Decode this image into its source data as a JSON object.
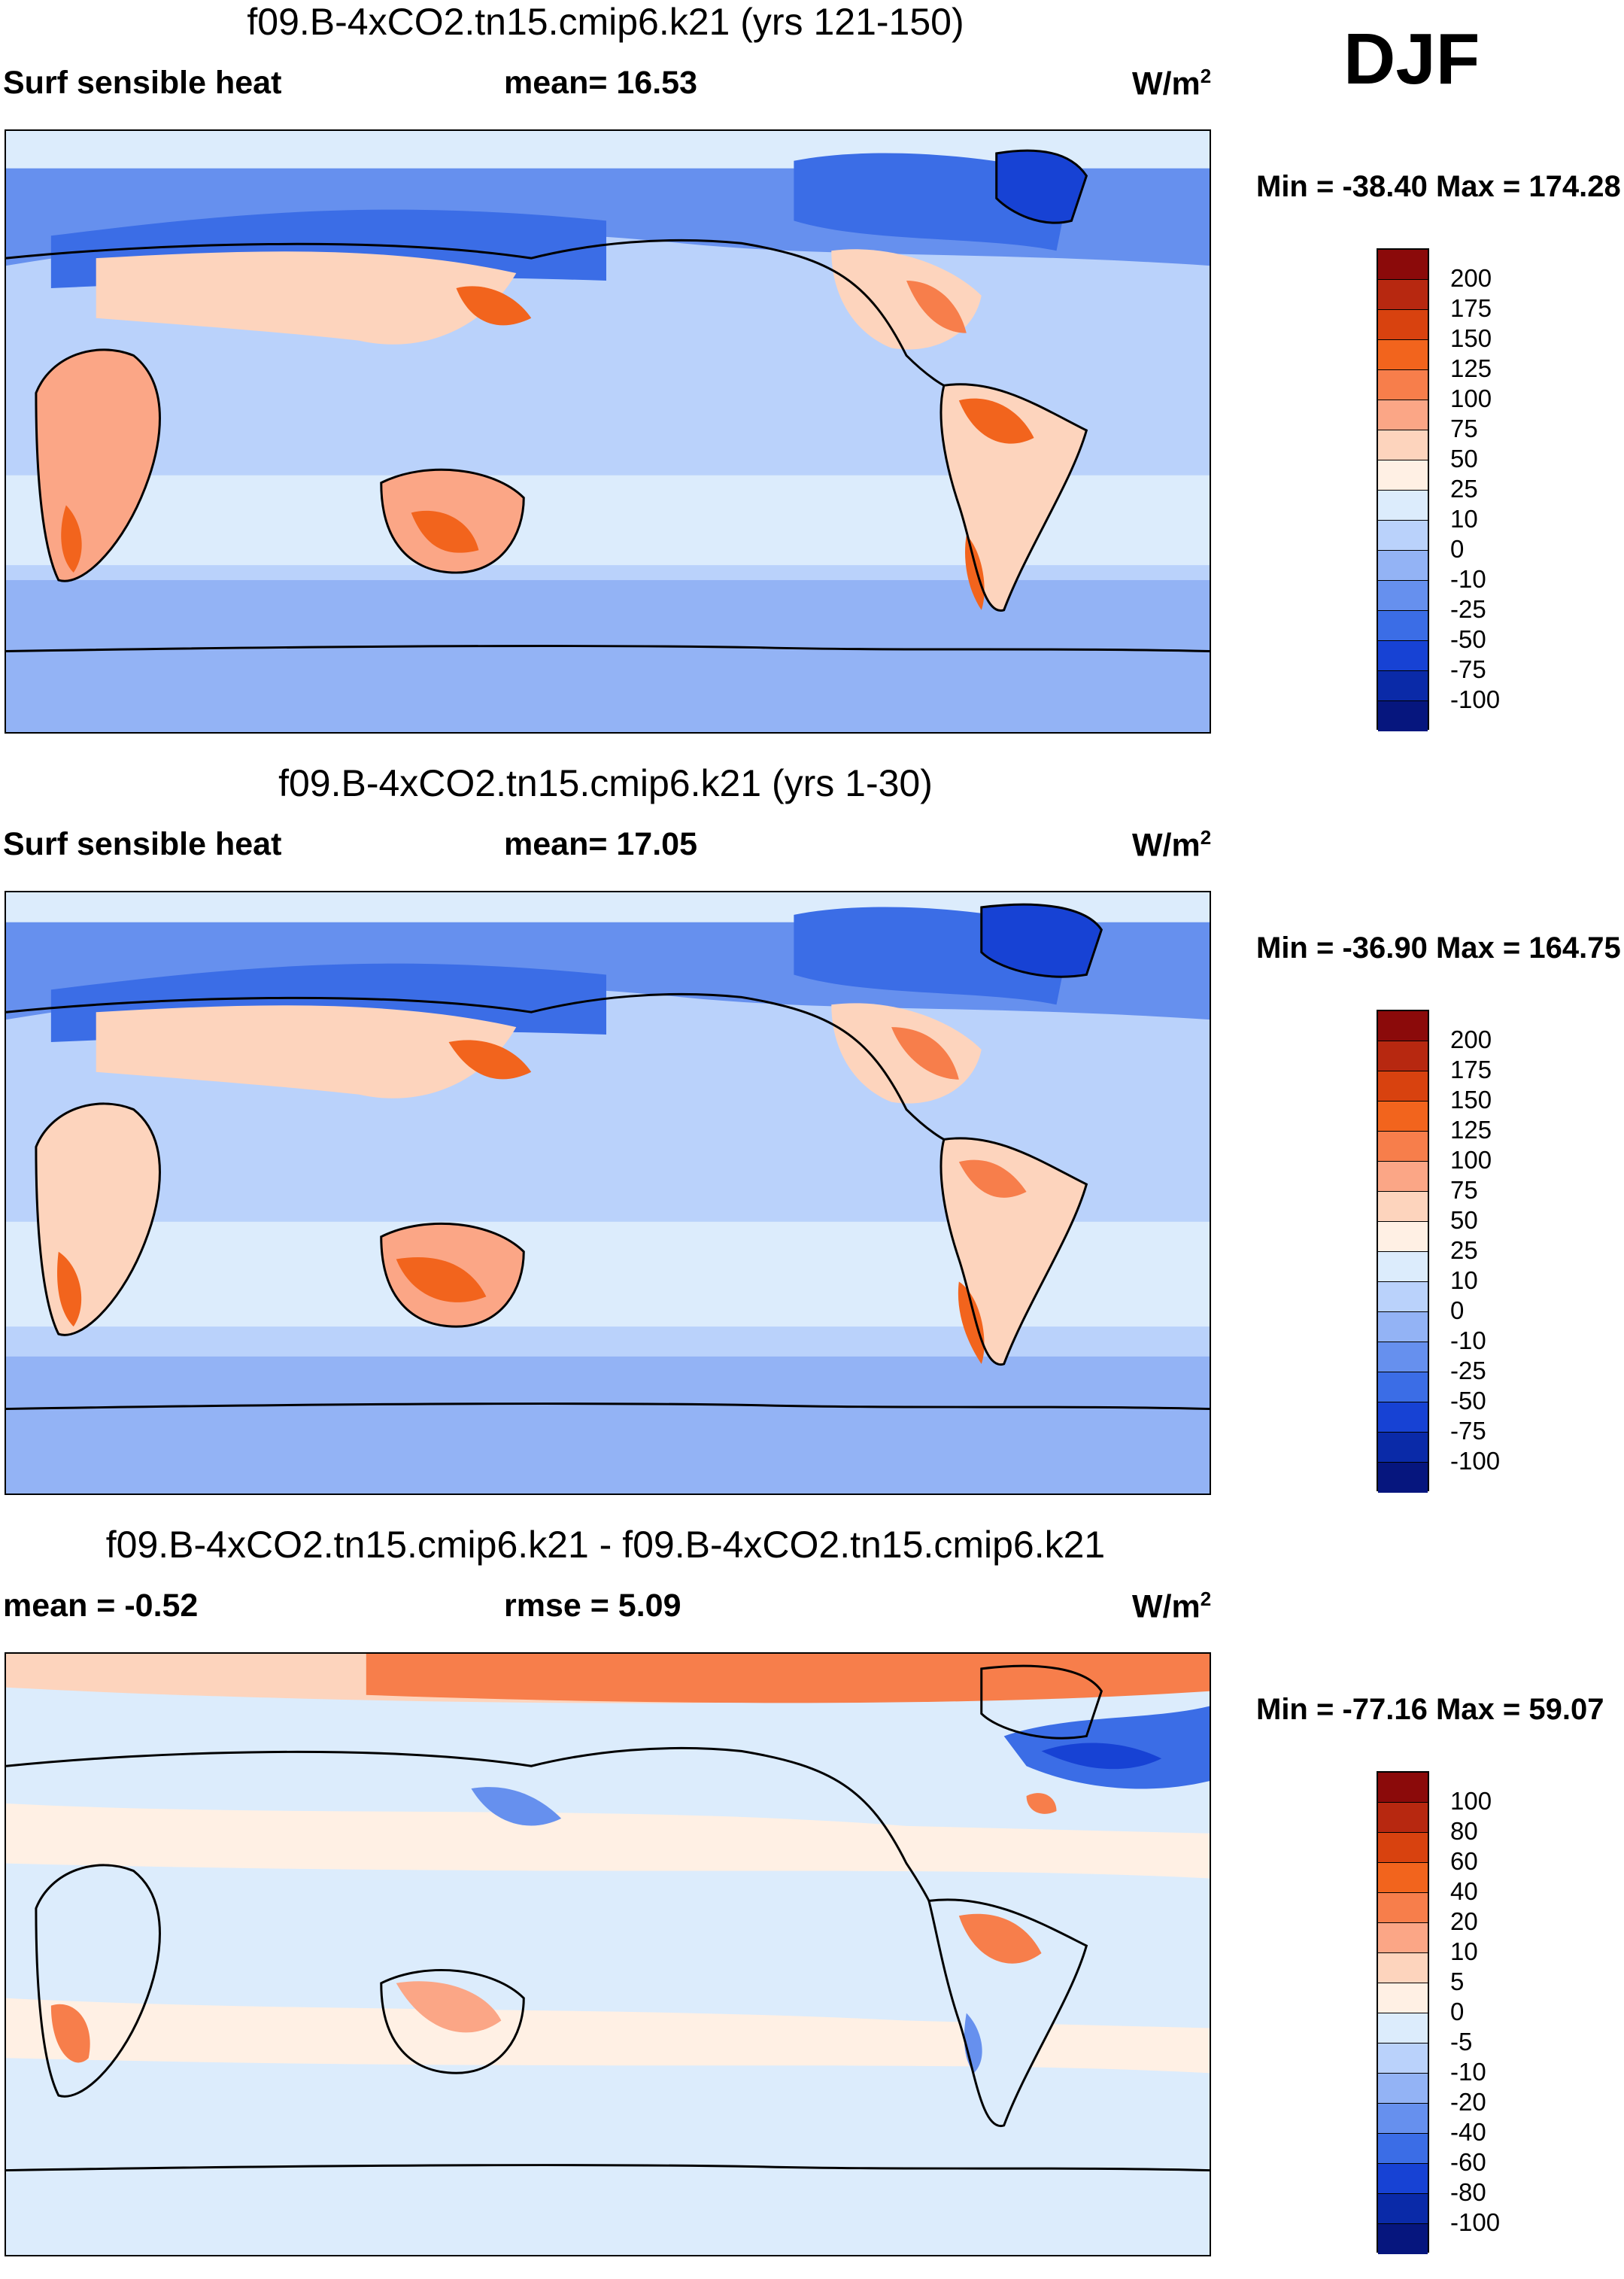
{
  "season": "DJF",
  "panels": [
    {
      "id": "top",
      "title": "f09.B-4xCO2.tn15.cmip6.k21 (yrs 121-150)",
      "left_label": "Surf sensible heat",
      "mid_label": "mean=  16.53",
      "units": "W/m",
      "units_sup": "2",
      "minmax": "Min = -38.40 Max = 174.28",
      "colorbar": {
        "labels": [
          "200",
          "175",
          "150",
          "125",
          "100",
          "75",
          "50",
          "25",
          "10",
          "0",
          "-10",
          "-25",
          "-50",
          "-75",
          "-100"
        ],
        "colors": [
          "#8b0a0a",
          "#b72810",
          "#d8420f",
          "#f2641d",
          "#f77e4b",
          "#fba686",
          "#fdd4bd",
          "#fff0e4",
          "#dcecfc",
          "#bad2fb",
          "#93b3f5",
          "#6690ee",
          "#3b6de6",
          "#1742d4",
          "#0a2aa8",
          "#06167e"
        ]
      }
    },
    {
      "id": "middle",
      "title": "f09.B-4xCO2.tn15.cmip6.k21 (yrs 1-30)",
      "left_label": "Surf sensible heat",
      "mid_label": "mean=  17.05",
      "units": "W/m",
      "units_sup": "2",
      "minmax": "Min = -36.90 Max = 164.75",
      "colorbar": {
        "labels": [
          "200",
          "175",
          "150",
          "125",
          "100",
          "75",
          "50",
          "25",
          "10",
          "0",
          "-10",
          "-25",
          "-50",
          "-75",
          "-100"
        ],
        "colors": [
          "#8b0a0a",
          "#b72810",
          "#d8420f",
          "#f2641d",
          "#f77e4b",
          "#fba686",
          "#fdd4bd",
          "#fff0e4",
          "#dcecfc",
          "#bad2fb",
          "#93b3f5",
          "#6690ee",
          "#3b6de6",
          "#1742d4",
          "#0a2aa8",
          "#06167e"
        ]
      }
    },
    {
      "id": "bottom",
      "title": "f09.B-4xCO2.tn15.cmip6.k21 - f09.B-4xCO2.tn15.cmip6.k21",
      "left_label": "mean =  -0.52",
      "mid_label": "rmse =    5.09",
      "units": "W/m",
      "units_sup": "2",
      "minmax": "Min = -77.16 Max =  59.07",
      "colorbar": {
        "labels": [
          "100",
          "80",
          "60",
          "40",
          "20",
          "10",
          "5",
          "0",
          "-5",
          "-10",
          "-20",
          "-40",
          "-60",
          "-80",
          "-100"
        ],
        "colors": [
          "#8b0a0a",
          "#b72810",
          "#d8420f",
          "#f2641d",
          "#f77e4b",
          "#fba686",
          "#fdd4bd",
          "#fff0e4",
          "#dcecfc",
          "#bad2fb",
          "#93b3f5",
          "#6690ee",
          "#3b6de6",
          "#1742d4",
          "#0a2aa8",
          "#06167e"
        ]
      }
    }
  ]
}
